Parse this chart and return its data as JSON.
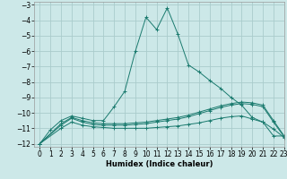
{
  "xlabel": "Humidex (Indice chaleur)",
  "bg_color": "#cce8e8",
  "grid_color": "#aacccc",
  "line_color": "#1a7a6e",
  "xlim": [
    -0.5,
    23
  ],
  "ylim": [
    -12.2,
    -2.8
  ],
  "yticks": [
    -12,
    -11,
    -10,
    -9,
    -8,
    -7,
    -6,
    -5,
    -4,
    -3
  ],
  "xticks": [
    0,
    1,
    2,
    3,
    4,
    5,
    6,
    7,
    8,
    9,
    10,
    11,
    12,
    13,
    14,
    15,
    16,
    17,
    18,
    19,
    20,
    21,
    22,
    23
  ],
  "series": [
    {
      "x": [
        0,
        1,
        2,
        3,
        4,
        5,
        6,
        7,
        8,
        9,
        10,
        11,
        12,
        13,
        14,
        15,
        16,
        17,
        18,
        19,
        20,
        21,
        22,
        23
      ],
      "y": [
        -12,
        -11.1,
        -10.5,
        -10.2,
        -10.35,
        -10.5,
        -10.5,
        -9.6,
        -8.6,
        -6.0,
        -3.8,
        -4.6,
        -3.2,
        -4.9,
        -6.9,
        -7.35,
        -7.9,
        -8.4,
        -9.0,
        -9.5,
        -10.3,
        -10.6,
        -11.5,
        -11.5
      ]
    },
    {
      "x": [
        0,
        2,
        3,
        4,
        5,
        6,
        7,
        8,
        9,
        10,
        11,
        12,
        13,
        14,
        15,
        16,
        17,
        18,
        19,
        20,
        21,
        22,
        23
      ],
      "y": [
        -12,
        -10.7,
        -10.3,
        -10.5,
        -10.65,
        -10.7,
        -10.7,
        -10.7,
        -10.65,
        -10.6,
        -10.5,
        -10.4,
        -10.3,
        -10.15,
        -9.95,
        -9.75,
        -9.55,
        -9.4,
        -9.3,
        -9.35,
        -9.5,
        -10.5,
        -11.5
      ]
    },
    {
      "x": [
        0,
        2,
        3,
        4,
        5,
        6,
        7,
        8,
        9,
        10,
        11,
        12,
        13,
        14,
        15,
        16,
        17,
        18,
        19,
        20,
        21,
        22,
        23
      ],
      "y": [
        -12,
        -10.8,
        -10.35,
        -10.6,
        -10.75,
        -10.8,
        -10.8,
        -10.8,
        -10.75,
        -10.7,
        -10.6,
        -10.5,
        -10.4,
        -10.25,
        -10.05,
        -9.85,
        -9.65,
        -9.5,
        -9.4,
        -9.45,
        -9.6,
        -10.6,
        -11.55
      ]
    },
    {
      "x": [
        0,
        2,
        3,
        4,
        5,
        6,
        7,
        8,
        9,
        10,
        11,
        12,
        13,
        14,
        15,
        16,
        17,
        18,
        19,
        20,
        21,
        22,
        23
      ],
      "y": [
        -12,
        -11.0,
        -10.6,
        -10.8,
        -10.9,
        -10.95,
        -11.0,
        -11.0,
        -11.0,
        -11.0,
        -10.95,
        -10.9,
        -10.85,
        -10.75,
        -10.65,
        -10.5,
        -10.35,
        -10.25,
        -10.2,
        -10.4,
        -10.6,
        -11.05,
        -11.6
      ]
    }
  ]
}
